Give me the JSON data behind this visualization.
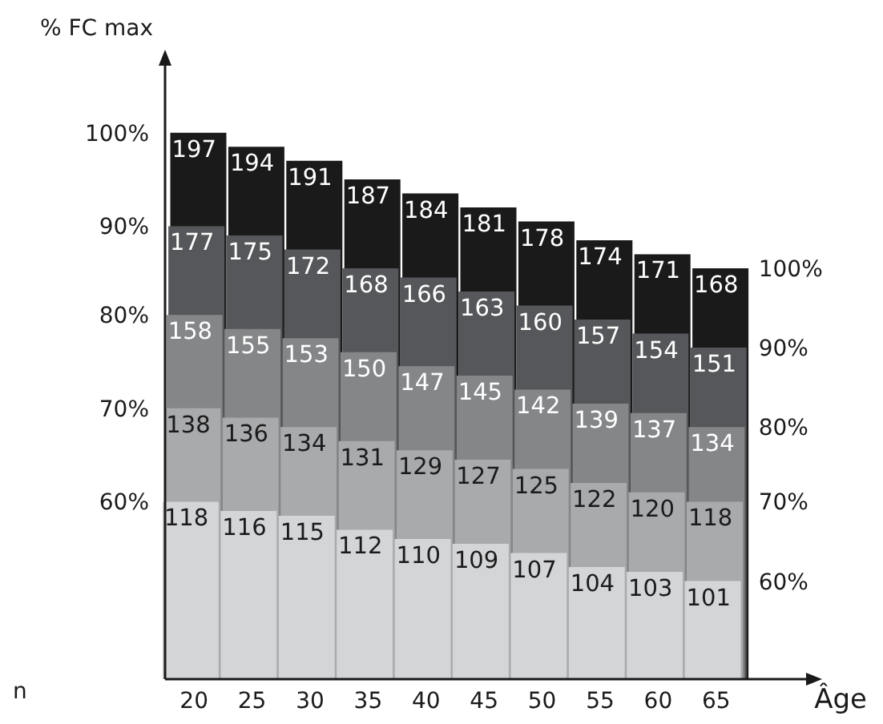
{
  "chart_data": {
    "type": "bar",
    "data_labels": true,
    "ylabel": "% FC max",
    "xlabel": "Âge",
    "annotations": [
      "n",
      {
        "text": "100%",
        "x": "20",
        "y": 197
      },
      {
        "text": "90%",
        "x": "20",
        "y": 177
      },
      {
        "text": "80%",
        "x": "20",
        "y": 158
      },
      {
        "text": "70%",
        "x": "20",
        "y": 138
      },
      {
        "text": "60%",
        "x": "20",
        "y": 118
      },
      {
        "text": "100%",
        "x": "65",
        "y": 168
      },
      {
        "text": "90%",
        "x": "65",
        "y": 151
      },
      {
        "text": "80%",
        "x": "65",
        "y": 134
      },
      {
        "text": "70%",
        "x": "65",
        "y": 118
      },
      {
        "text": "60%",
        "x": "65",
        "y": 101
      }
    ],
    "categories": [
      "20",
      "25",
      "30",
      "35",
      "40",
      "45",
      "50",
      "55",
      "60",
      "65"
    ],
    "ylim": [
      80,
      210
    ],
    "series": [
      {
        "color": "#1b1a1b",
        "values": [
          197,
          194,
          191,
          187,
          184,
          181,
          178,
          174,
          171,
          168
        ]
      },
      {
        "color": "#56575a",
        "values": [
          177,
          175,
          172,
          168,
          166,
          163,
          160,
          157,
          154,
          151
        ]
      },
      {
        "color": "#858688",
        "values": [
          158,
          155,
          153,
          150,
          147,
          145,
          142,
          139,
          137,
          134
        ]
      },
      {
        "color": "#a9aaac",
        "values": [
          138,
          136,
          134,
          131,
          129,
          127,
          125,
          122,
          120,
          118
        ]
      },
      {
        "color": "#d4d5d7",
        "values": [
          118,
          116,
          115,
          112,
          110,
          109,
          107,
          104,
          103,
          101
        ]
      }
    ],
    "grid": false,
    "legend": false
  }
}
